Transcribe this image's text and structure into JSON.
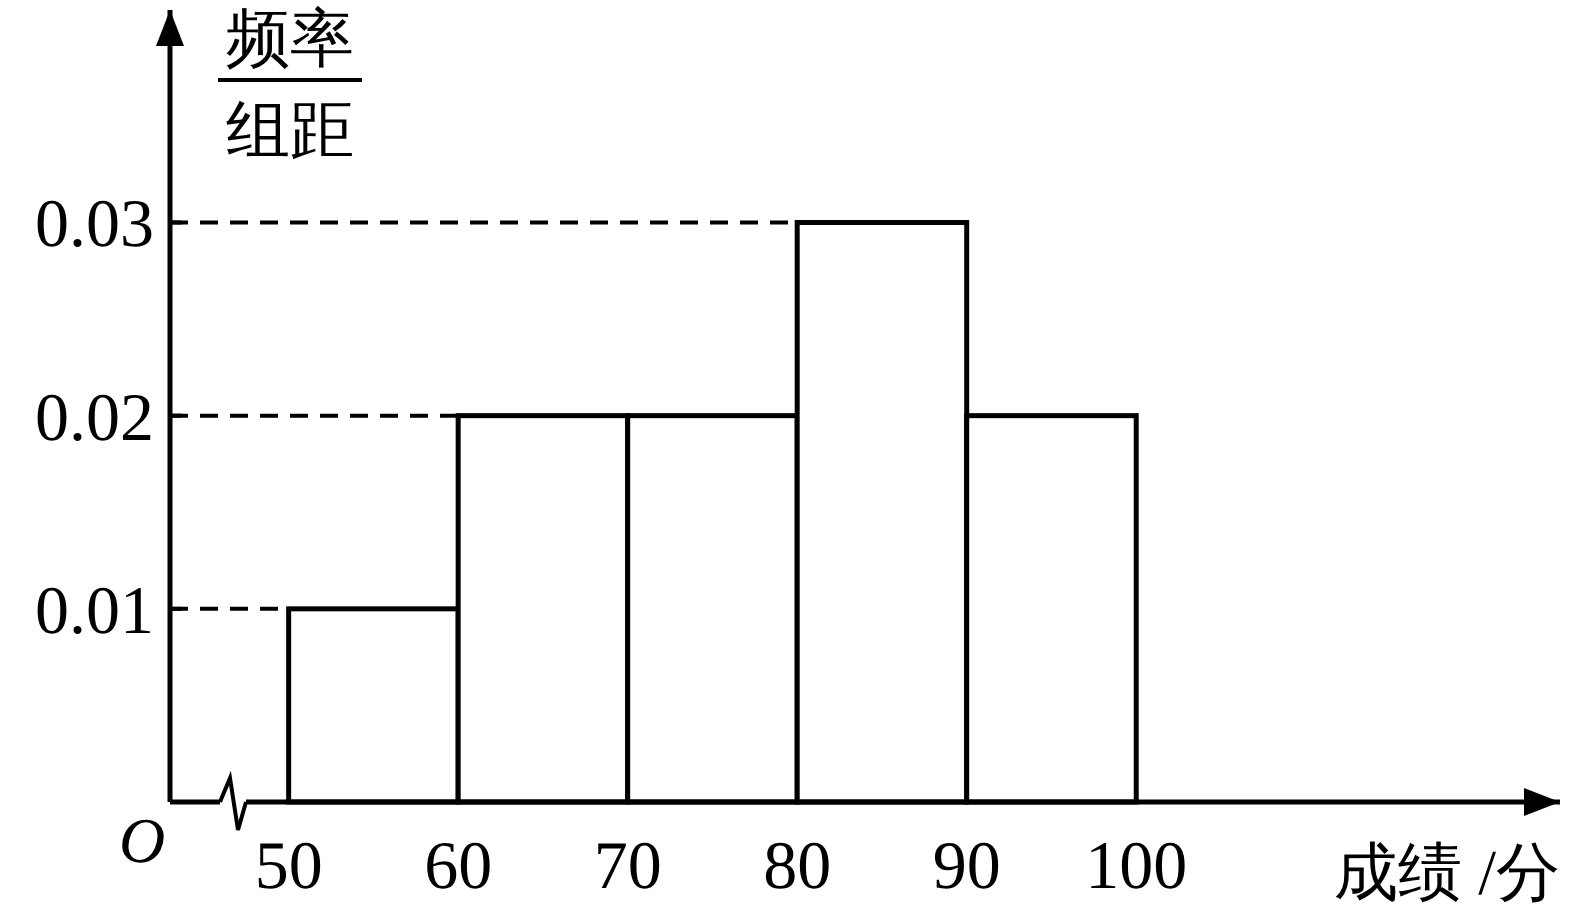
{
  "chart_data": {
    "type": "histogram",
    "bins": [
      50,
      60,
      70,
      80,
      90,
      100
    ],
    "values": [
      0.01,
      0.02,
      0.02,
      0.03,
      0.02
    ],
    "color": "#ffffff",
    "xlabel": "成绩 /分",
    "ylabel": "频率组距",
    "xlim": [
      43,
      125
    ],
    "ylim": [
      0,
      0.041
    ],
    "xticks": [
      50,
      60,
      70,
      80,
      90,
      100
    ],
    "yticks": [
      0.01,
      0.02,
      0.03
    ],
    "ref_lines": [
      {
        "axis": "y",
        "value": 0.01,
        "line_style": "dashed"
      },
      {
        "axis": "y",
        "value": 0.02,
        "line_style": "dashed"
      },
      {
        "axis": "y",
        "value": 0.03,
        "line_style": "dashed"
      }
    ],
    "annotations": [
      "O"
    ],
    "grid": false
  }
}
